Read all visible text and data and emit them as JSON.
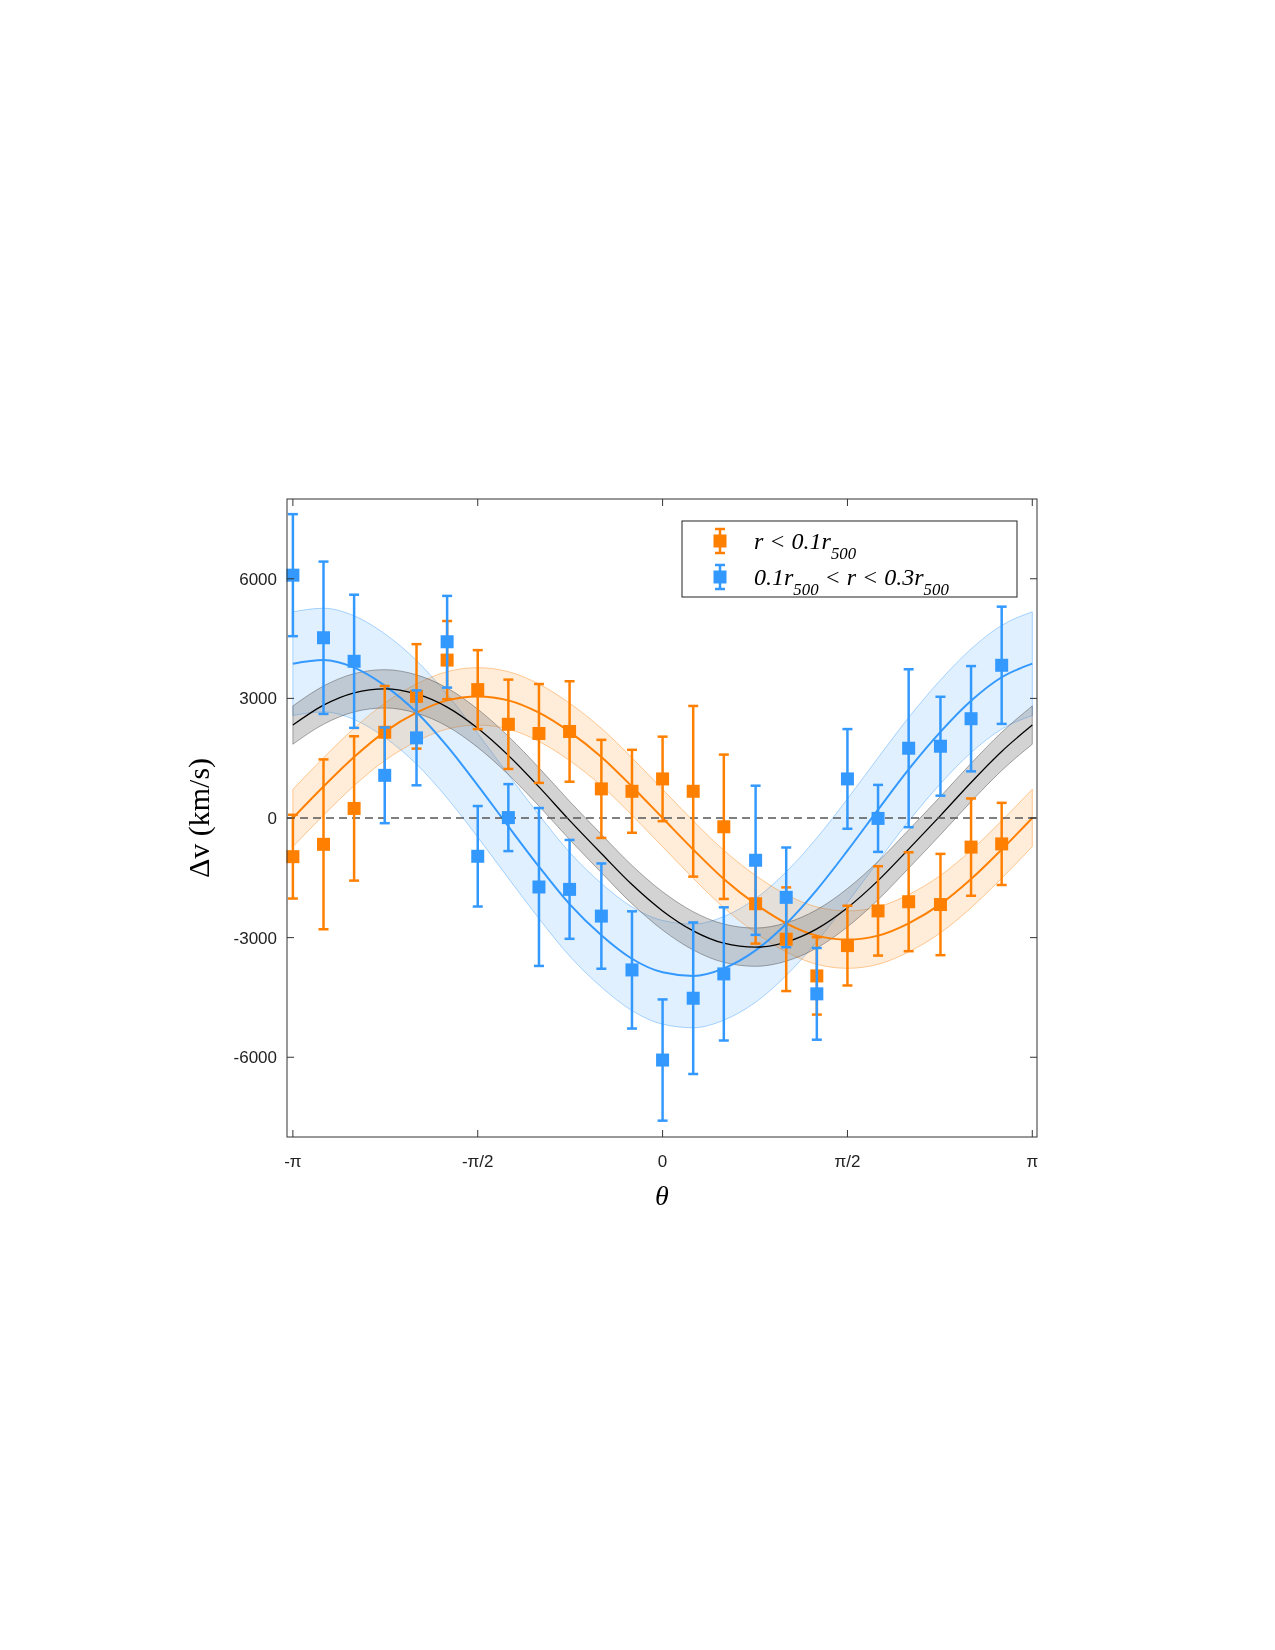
{
  "chart_data": {
    "type": "scatter",
    "xlabel": "θ",
    "ylabel": "Δv (km/s)",
    "xlim": [
      -3.19,
      3.18
    ],
    "ylim": [
      -8000,
      8000
    ],
    "xticks": [
      {
        "value": -3.14,
        "label": "-π"
      },
      {
        "value": -1.57,
        "label": "-π/2"
      },
      0,
      {
        "value": 1.57,
        "label": "π/2"
      },
      {
        "value": 3.14,
        "label": "π"
      }
    ],
    "yticks": [
      -6000,
      -3000,
      0,
      3000,
      6000
    ],
    "legend": "top right",
    "ref_lines": [
      {
        "axis": "y",
        "value": 0,
        "color": "#555555",
        "line_style": "dashed"
      }
    ],
    "series": [
      {
        "type": "line",
        "color": "#3399ff",
        "x": [
          -3.14,
          -2.88,
          -2.62,
          -2.36,
          -2.09,
          -1.83,
          -1.57,
          -1.31,
          -1.05,
          -0.79,
          -0.52,
          -0.26,
          0,
          0.26,
          0.52,
          0.79,
          1.05,
          1.31,
          1.57,
          1.83,
          2.09,
          2.36,
          2.62,
          2.88,
          3.14
        ],
        "values": [
          3870,
          3960,
          3770,
          3320,
          2650,
          1800,
          820,
          -210,
          -1220,
          -2160,
          -2940,
          -3530,
          -3870,
          -3960,
          -3770,
          -3320,
          -2650,
          -1800,
          -820,
          210,
          1220,
          2160,
          2940,
          3530,
          3870
        ],
        "lower": [
          2570,
          2660,
          2470,
          2020,
          1350,
          500,
          -480,
          -1510,
          -2520,
          -3460,
          -4240,
          -4830,
          -5170,
          -5260,
          -5070,
          -4620,
          -3950,
          -3100,
          -2120,
          -1090,
          -80,
          860,
          1640,
          2230,
          2570
        ],
        "upper": [
          5170,
          5260,
          5070,
          4620,
          3950,
          3100,
          2120,
          1090,
          80,
          -860,
          -1640,
          -2230,
          -2570,
          -2660,
          -2470,
          -2020,
          -1350,
          -500,
          480,
          1510,
          2520,
          3460,
          4240,
          4830,
          5170
        ]
      },
      {
        "type": "line",
        "color": "#ff8000",
        "x": [
          -3.14,
          -2.88,
          -2.62,
          -2.36,
          -2.09,
          -1.83,
          -1.57,
          -1.31,
          -1.05,
          -0.79,
          -0.52,
          -0.26,
          0,
          0.26,
          0.52,
          0.79,
          1.05,
          1.31,
          1.57,
          1.83,
          2.09,
          2.36,
          2.62,
          2.88,
          3.14
        ],
        "values": [
          0,
          790,
          1530,
          2160,
          2640,
          2950,
          3050,
          2950,
          2640,
          2160,
          1530,
          790,
          0,
          -790,
          -1530,
          -2160,
          -2640,
          -2950,
          -3050,
          -2950,
          -2640,
          -2160,
          -1530,
          -790,
          0
        ],
        "lower": [
          -720,
          70,
          810,
          1440,
          1920,
          2230,
          2330,
          2230,
          1920,
          1440,
          810,
          70,
          -720,
          -1510,
          -2250,
          -2880,
          -3360,
          -3670,
          -3770,
          -3670,
          -3360,
          -2880,
          -2250,
          -1510,
          -720
        ],
        "upper": [
          720,
          1510,
          2250,
          2880,
          3360,
          3670,
          3770,
          3670,
          3360,
          2880,
          2250,
          1510,
          720,
          -70,
          -810,
          -1440,
          -1920,
          -2230,
          -2330,
          -2230,
          -1920,
          -1440,
          -810,
          -70,
          720
        ]
      },
      {
        "type": "line",
        "color": "#000000",
        "x": [
          -3.14,
          -2.88,
          -2.62,
          -2.36,
          -2.09,
          -1.83,
          -1.57,
          -1.31,
          -1.05,
          -0.79,
          -0.52,
          -0.26,
          0,
          0.26,
          0.52,
          0.79,
          1.05,
          1.31,
          1.57,
          1.83,
          2.09,
          2.36,
          2.62,
          2.88,
          3.14
        ],
        "values": [
          2330,
          2830,
          3140,
          3240,
          3110,
          2780,
          2250,
          1570,
          780,
          -60,
          -890,
          -1670,
          -2330,
          -2830,
          -3140,
          -3240,
          -3110,
          -2780,
          -2250,
          -1570,
          -780,
          60,
          890,
          1670,
          2330
        ],
        "lower": [
          1850,
          2350,
          2660,
          2760,
          2630,
          2300,
          1770,
          1090,
          300,
          -540,
          -1370,
          -2150,
          -2810,
          -3310,
          -3620,
          -3720,
          -3590,
          -3260,
          -2730,
          -2050,
          -1260,
          -420,
          410,
          1190,
          1850
        ],
        "upper": [
          2810,
          3310,
          3620,
          3720,
          3590,
          3260,
          2730,
          2050,
          1260,
          420,
          -410,
          -1190,
          -1850,
          -2350,
          -2660,
          -2760,
          -2630,
          -2300,
          -1770,
          -1090,
          -300,
          540,
          1370,
          2150,
          2810
        ]
      },
      {
        "marker": "square",
        "name": "r < 0.1r$_{500}$",
        "color": "#ff8000",
        "x": [
          -3.14,
          -2.88,
          -2.62,
          -2.36,
          -2.09,
          -1.83,
          -1.57,
          -1.31,
          -1.05,
          -0.79,
          -0.52,
          -0.26,
          0,
          0.26,
          0.52,
          0.79,
          1.05,
          1.31,
          1.57,
          1.83,
          2.09,
          2.36,
          2.62,
          2.88
        ],
        "values": [
          -970,
          -660,
          240,
          2150,
          3050,
          3960,
          3220,
          2350,
          2120,
          2170,
          730,
          670,
          980,
          670,
          -220,
          -2150,
          -3040,
          -3960,
          -3200,
          -2330,
          -2100,
          -2170,
          -730,
          -650
        ],
        "errors": [
          1050,
          2130,
          1810,
          1160,
          1310,
          980,
          990,
          1120,
          1240,
          1260,
          1230,
          1040,
          1060,
          2140,
          1810,
          1000,
          1300,
          970,
          1000,
          1120,
          1240,
          1270,
          1220,
          1030
        ]
      },
      {
        "marker": "square",
        "name": "0.1r$_{500}$ < r < 0.3r$_{500}$",
        "color": "#3399ff",
        "x": [
          -3.14,
          -2.88,
          -2.62,
          -2.36,
          -2.09,
          -1.83,
          -1.57,
          -1.31,
          -1.05,
          -0.79,
          -0.52,
          -0.26,
          0,
          0.26,
          0.52,
          0.79,
          1.05,
          1.31,
          1.57,
          1.83,
          2.09,
          2.36,
          2.62,
          2.88
        ],
        "values": [
          6090,
          4520,
          3930,
          1070,
          2010,
          4420,
          -960,
          10,
          -1730,
          -1790,
          -2460,
          -3810,
          -6070,
          -4520,
          -3910,
          -1060,
          -1990,
          -4410,
          980,
          -10,
          1750,
          1800,
          2490,
          3830
        ],
        "errors": [
          1530,
          1910,
          1670,
          1200,
          1190,
          1150,
          1260,
          840,
          1980,
          1240,
          1320,
          1470,
          1520,
          1900,
          1670,
          1870,
          1250,
          1150,
          1250,
          840,
          1980,
          1240,
          1320,
          1470
        ]
      }
    ]
  }
}
